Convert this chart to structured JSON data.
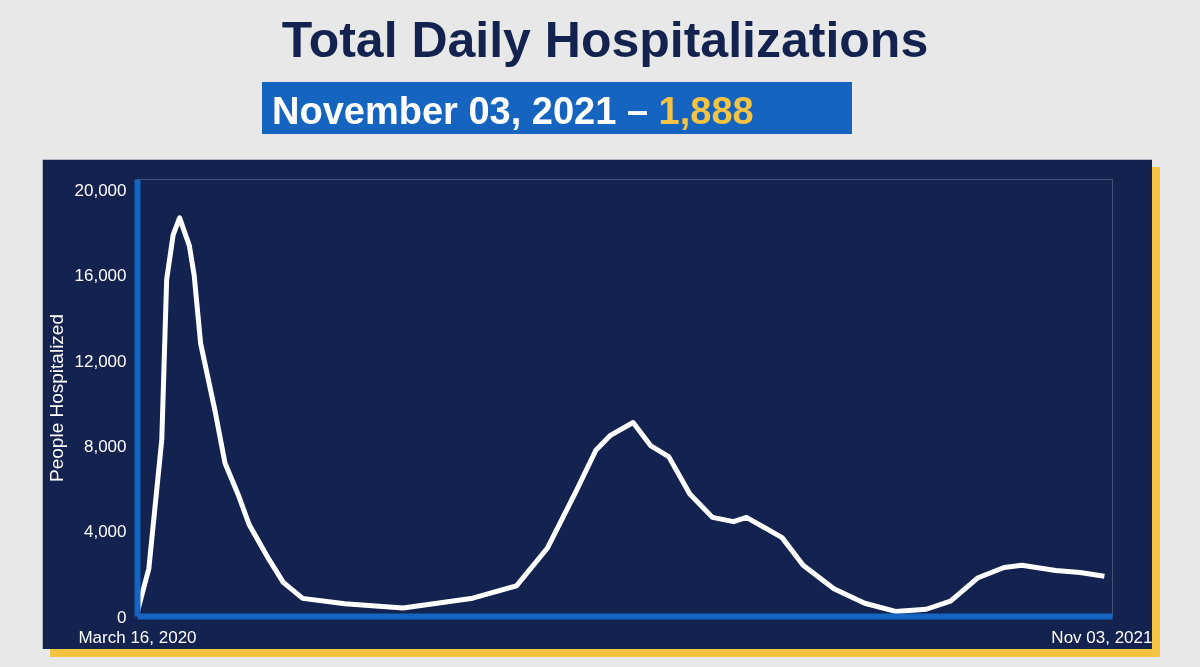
{
  "chart_data": {
    "type": "line",
    "title": "Total Daily Hospitalizations",
    "subtitle": "November 03, 2021 – 1,888",
    "ylabel": "People Hospitalized",
    "x": [
      "2020-03-16",
      "2020-03-23",
      "2020-03-31",
      "2020-04-03",
      "2020-04-07",
      "2020-04-11",
      "2020-04-17",
      "2020-04-20",
      "2020-04-24",
      "2020-05-03",
      "2020-05-09",
      "2020-05-17",
      "2020-05-24",
      "2020-06-05",
      "2020-06-14",
      "2020-06-26",
      "2020-07-22",
      "2020-08-27",
      "2020-10-09",
      "2020-11-05",
      "2020-11-24",
      "2020-12-12",
      "2020-12-24",
      "2021-01-02",
      "2021-01-16",
      "2021-01-27",
      "2021-02-07",
      "2021-02-20",
      "2021-03-06",
      "2021-03-19",
      "2021-03-27",
      "2021-04-18",
      "2021-05-01",
      "2021-05-20",
      "2021-06-08",
      "2021-06-27",
      "2021-07-16",
      "2021-07-31",
      "2021-08-17",
      "2021-09-02",
      "2021-09-13",
      "2021-10-04",
      "2021-10-19",
      "2021-11-03"
    ],
    "series": [
      {
        "color": "#ffffff",
        "values": [
          240,
          2250,
          8300,
          15800,
          17900,
          18700,
          17400,
          16000,
          12800,
          9600,
          7200,
          5750,
          4300,
          2700,
          1600,
          850,
          600,
          400,
          860,
          1440,
          3200,
          5900,
          7800,
          8500,
          9100,
          8000,
          7500,
          5750,
          4650,
          4450,
          4650,
          3700,
          2400,
          1300,
          620,
          240,
          340,
          720,
          1820,
          2300,
          2400,
          2160,
          2060,
          1888
        ]
      }
    ],
    "xlim": [
      "2020-03-16",
      "2021-11-08"
    ],
    "xticks": [
      {
        "value": "2020-03-16",
        "label": "March 16, 2020"
      },
      {
        "value": "2021-11-03",
        "label": "Nov 03, 2021"
      }
    ],
    "ylim": [
      0,
      20500
    ],
    "yticks": [
      0,
      {
        "value": 4000,
        "label": "4,000"
      },
      {
        "value": 8000,
        "label": "8,000"
      },
      {
        "value": 12000,
        "label": "12,000"
      },
      {
        "value": 16000,
        "label": "16,000"
      },
      {
        "value": 20000,
        "label": "20,000"
      }
    ],
    "grid": false,
    "marker": "none",
    "line_style": "solid"
  }
}
